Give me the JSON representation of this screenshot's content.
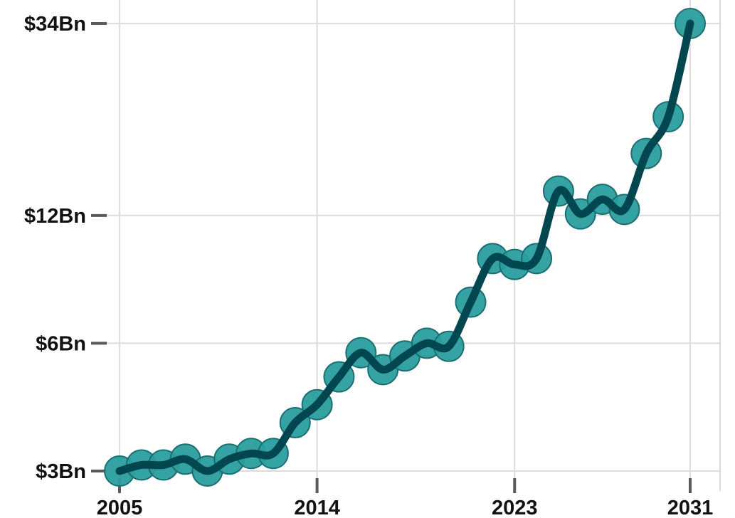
{
  "chart_data": {
    "type": "line",
    "title": "",
    "xlabel": "",
    "ylabel": "",
    "x_ticks": [
      {
        "value": 2005,
        "label": "2005"
      },
      {
        "value": 2014,
        "label": "2014"
      },
      {
        "value": 2023,
        "label": "2023"
      },
      {
        "value": 2031,
        "label": "2031"
      }
    ],
    "y_ticks": [
      {
        "value": 3,
        "label": "$3Bn"
      },
      {
        "value": 6,
        "label": "$6Bn"
      },
      {
        "value": 12,
        "label": "$12Bn"
      },
      {
        "value": 34,
        "label": "$34Bn"
      }
    ],
    "y_scale": "log",
    "xlim": [
      2005,
      2031
    ],
    "ylim": [
      3,
      34
    ],
    "grid": true,
    "legend": "none",
    "colors": {
      "marker_fill": "#2a9d9f",
      "marker_stroke": "#1c6f71",
      "line": "#024650",
      "grid": "#dcdcdc",
      "tick": "#5a5a5a"
    },
    "series": [
      {
        "x": [
          2005,
          2006,
          2007,
          2008,
          2009,
          2010,
          2011,
          2012,
          2013,
          2014,
          2015,
          2016,
          2017,
          2018,
          2019,
          2020,
          2021,
          2022,
          2023,
          2024,
          2025,
          2026,
          2027,
          2028,
          2029,
          2030,
          2031
        ],
        "values": [
          3.0,
          3.1,
          3.1,
          3.2,
          3.0,
          3.2,
          3.3,
          3.3,
          3.9,
          4.3,
          5.0,
          5.7,
          5.2,
          5.6,
          6.0,
          5.9,
          7.5,
          9.5,
          9.2,
          9.5,
          13.7,
          12.1,
          13.1,
          12.4,
          16.8,
          20.5,
          34.0
        ]
      }
    ]
  }
}
